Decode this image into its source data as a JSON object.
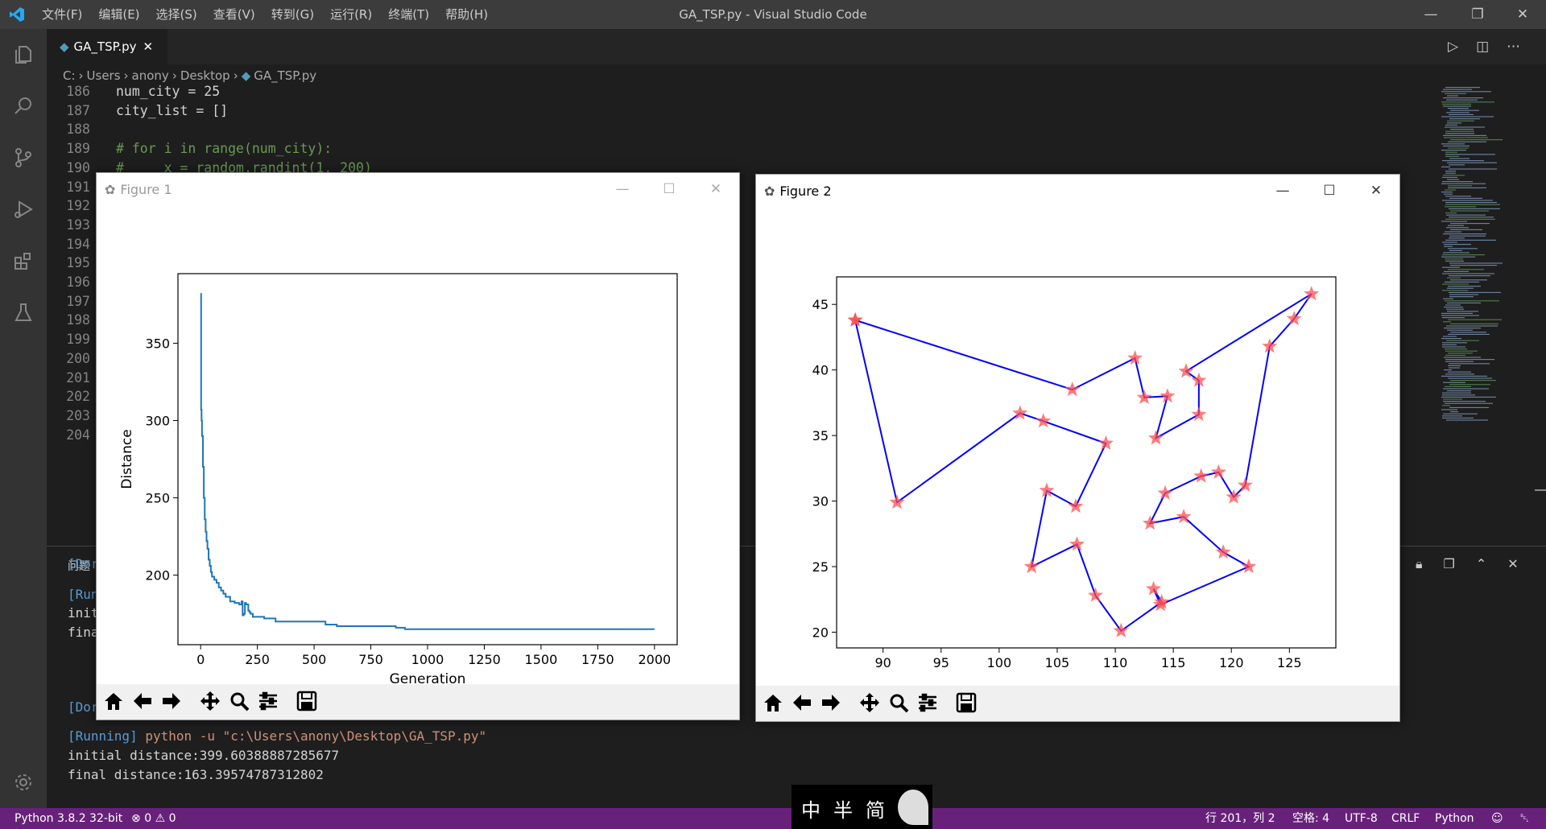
{
  "titlebar": {
    "menus": [
      "文件(F)",
      "编辑(E)",
      "选择(S)",
      "查看(V)",
      "转到(G)",
      "运行(R)",
      "终端(T)",
      "帮助(H)"
    ],
    "window_title": "GA_TSP.py - Visual Studio Code"
  },
  "tab": {
    "label": "GA_TSP.py"
  },
  "breadcrumb": {
    "items": [
      "C:",
      "Users",
      "anony",
      "Desktop",
      "GA_TSP.py"
    ]
  },
  "code": {
    "lines": [
      {
        "no": "186",
        "text": "num_city = 25"
      },
      {
        "no": "187",
        "text": "city_list = []"
      },
      {
        "no": "188",
        "text": ""
      },
      {
        "no": "189",
        "text": "# for i in range(num_city):"
      },
      {
        "no": "190",
        "text": "#     x = random.randint(1, 200)"
      },
      {
        "no": "191",
        "text": ""
      },
      {
        "no": "192",
        "text": ""
      },
      {
        "no": "193",
        "text": ""
      },
      {
        "no": "194",
        "text": ""
      },
      {
        "no": "195",
        "text": ""
      },
      {
        "no": "196",
        "text": ""
      },
      {
        "no": "197",
        "text": ""
      },
      {
        "no": "198",
        "text": ""
      },
      {
        "no": "199",
        "text": ""
      },
      {
        "no": "200",
        "text": ""
      },
      {
        "no": "201",
        "text": ""
      },
      {
        "no": "202",
        "text": ""
      },
      {
        "no": "203",
        "text": ""
      },
      {
        "no": "204",
        "text": ""
      }
    ]
  },
  "panel": {
    "tab_label": "问题",
    "terminal": [
      {
        "kind": "tag",
        "text": "[Dor"
      },
      {
        "kind": "blank",
        "text": ""
      },
      {
        "kind": "tag",
        "text": "[Run"
      },
      {
        "kind": "plain",
        "text": "init"
      },
      {
        "kind": "plain",
        "text": "fina"
      },
      {
        "kind": "blank",
        "text": ""
      },
      {
        "kind": "tag",
        "text": "[Dor"
      },
      {
        "kind": "blank",
        "text": ""
      },
      {
        "kind": "run",
        "tag": "[Running]",
        "cmd": " python -u \"c:\\Users\\anony\\Desktop\\GA_TSP.py\""
      },
      {
        "kind": "plain",
        "text": "initial distance:399.60388887285677"
      },
      {
        "kind": "plain",
        "text": "final distance:163.39574787312802"
      }
    ]
  },
  "status": {
    "python": "Python 3.8.2 32-bit",
    "errors": "0",
    "warnings": "0",
    "position": "行 201，列 2",
    "spaces": "空格: 4",
    "encoding": "UTF-8",
    "eol": "CRLF",
    "language": "Python"
  },
  "ime": {
    "chars": [
      "中",
      "半",
      "简"
    ]
  },
  "figure1": {
    "title": "Figure 1"
  },
  "figure2": {
    "title": "Figure 2"
  },
  "colors": {
    "accent_status": "#68217a",
    "line_fig1": "#1f77b4",
    "route": "#0000ff",
    "star": "#ff4d4d"
  },
  "chart_data": [
    {
      "type": "line",
      "title": "",
      "xlabel": "Generation",
      "ylabel": "Distance",
      "xlim": [
        -100,
        2100
      ],
      "ylim": [
        155,
        395
      ],
      "xticks": [
        0,
        250,
        500,
        750,
        1000,
        1250,
        1500,
        1750,
        2000
      ],
      "yticks": [
        200,
        250,
        300,
        350
      ],
      "x": [
        0,
        2,
        4,
        6,
        10,
        14,
        18,
        22,
        26,
        30,
        35,
        40,
        45,
        50,
        60,
        70,
        80,
        90,
        100,
        110,
        130,
        150,
        170,
        180,
        185,
        190,
        195,
        200,
        210,
        215,
        220,
        230,
        260,
        280,
        330,
        350,
        400,
        450,
        500,
        550,
        600,
        700,
        800,
        860,
        900,
        1000,
        1200,
        1500,
        1800,
        2000
      ],
      "y": [
        382,
        307,
        300,
        290,
        270,
        250,
        236,
        228,
        222,
        217,
        210,
        206,
        202,
        199,
        197,
        195,
        192,
        190,
        188,
        186,
        183,
        182,
        181,
        183,
        174,
        175,
        182,
        181,
        177,
        176,
        175,
        173,
        173,
        172,
        170,
        170,
        170,
        170,
        170,
        168,
        167,
        167,
        167,
        166,
        165,
        165,
        165,
        165,
        165,
        165
      ]
    },
    {
      "type": "line",
      "title": "",
      "xlabel": "",
      "ylabel": "",
      "xlim": [
        86,
        129
      ],
      "ylim": [
        18.8,
        47.1
      ],
      "xticks": [
        90,
        95,
        100,
        105,
        110,
        115,
        120,
        125
      ],
      "yticks": [
        20,
        25,
        30,
        35,
        40,
        45
      ],
      "markers": "star",
      "x": [
        87.6,
        106.3,
        111.7,
        112.5,
        114.5,
        113.5,
        117.2,
        117.2,
        116.1,
        126.9,
        125.4,
        123.3,
        121.2,
        120.2,
        118.9,
        117.4,
        114.3,
        113.0,
        115.9,
        119.3,
        121.5,
        113.9,
        113.3,
        114.0,
        110.5,
        108.3,
        106.7,
        102.8,
        104.1,
        106.6,
        109.2,
        103.8,
        101.8,
        91.2,
        87.6
      ],
      "y": [
        43.8,
        38.5,
        40.9,
        37.9,
        38.0,
        34.8,
        36.6,
        39.2,
        39.9,
        45.8,
        43.9,
        41.8,
        31.2,
        30.3,
        32.2,
        31.9,
        30.6,
        28.3,
        28.8,
        26.1,
        25.0,
        22.1,
        23.3,
        22.3,
        20.1,
        22.8,
        26.7,
        25.0,
        30.8,
        29.6,
        34.4,
        36.1,
        36.7,
        29.9,
        43.8
      ]
    }
  ]
}
